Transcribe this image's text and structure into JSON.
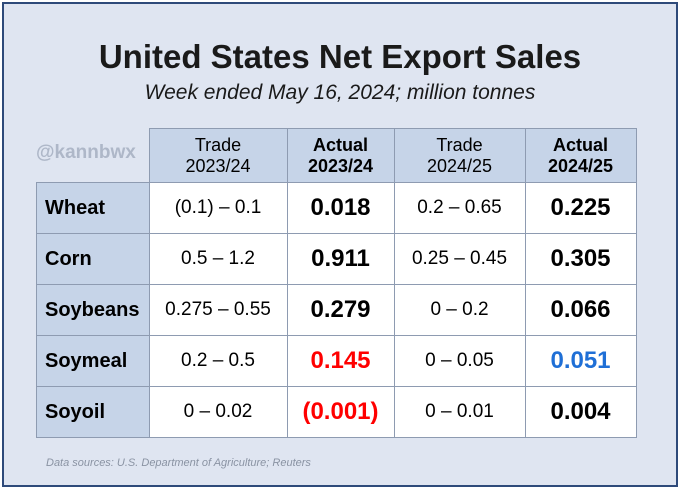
{
  "title": "United States Net Export Sales",
  "subtitle": "Week ended May 16, 2024; million tonnes",
  "handle": "@kannbwx",
  "headers": [
    {
      "line1": "Trade",
      "line2": "2023/24"
    },
    {
      "line1": "Actual",
      "line2": "2023/24"
    },
    {
      "line1": "Trade",
      "line2": "2024/25"
    },
    {
      "line1": "Actual",
      "line2": "2024/25"
    }
  ],
  "rows": [
    {
      "label": "Wheat",
      "trade_2324": "(0.1) – 0.1",
      "actual_2324": "0.018",
      "trade_2425": "0.2 – 0.65",
      "actual_2425": "0.225"
    },
    {
      "label": "Corn",
      "trade_2324": "0.5 – 1.2",
      "actual_2324": "0.911",
      "trade_2425": "0.25 – 0.45",
      "actual_2425": "0.305"
    },
    {
      "label": "Soybeans",
      "trade_2324": "0.275 – 0.55",
      "actual_2324": "0.279",
      "trade_2425": "0 – 0.2",
      "actual_2425": "0.066"
    },
    {
      "label": "Soymeal",
      "trade_2324": "0.2 – 0.5",
      "actual_2324": "0.145",
      "trade_2425": "0 – 0.05",
      "actual_2425": "0.051"
    },
    {
      "label": "Soyoil",
      "trade_2324": "0 – 0.02",
      "actual_2324": "(0.001)",
      "trade_2425": "0 – 0.01",
      "actual_2425": "0.004"
    }
  ],
  "colors": {
    "below_range": "#ff0000",
    "at_range_low_end": "#1f6fd6",
    "default": "#000000"
  },
  "source": "Data sources: U.S. Department of Agriculture; Reuters"
}
